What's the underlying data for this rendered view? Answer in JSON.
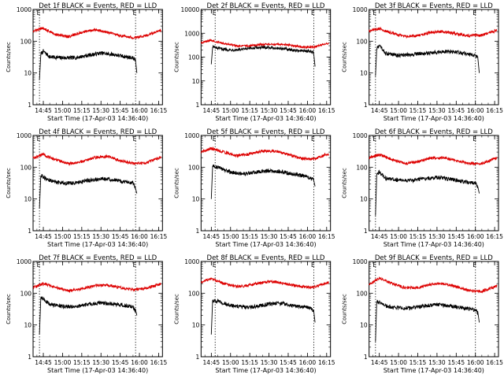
{
  "figure": {
    "ylabel": "Counts/sec",
    "xlabel": "Start Time (17-Apr-03 14:36:40)",
    "marker_label": "E",
    "colors": {
      "events": "#000000",
      "lld": "#dd0000",
      "axes": "#000000"
    }
  },
  "chart_data": [
    {
      "type": "line",
      "title": "Det 1f BLACK = Events, RED = LLD",
      "xlabel": "Start Time (17-Apr-03 14:36:40)",
      "ylabel": "Counts/sec",
      "yscale": "log",
      "ylim": [
        1,
        1000
      ],
      "yticks": [
        "1",
        "10",
        "100",
        "1000"
      ],
      "xlim": [
        "14:37",
        "16:18"
      ],
      "xticks": [
        "14:45",
        "15:00",
        "15:15",
        "15:30",
        "15:45",
        "16:00",
        "16:15"
      ],
      "markers": [
        "14:42",
        "15:57"
      ],
      "marker_label": "E",
      "series": [
        {
          "name": "BLACK = Events",
          "x": [
            "14:42",
            "14:43",
            "14:45",
            "14:50",
            "15:00",
            "15:10",
            "15:20",
            "15:30",
            "15:40",
            "15:50",
            "15:55",
            "15:57",
            "15:58"
          ],
          "y": [
            6,
            40,
            48,
            32,
            30,
            30,
            36,
            42,
            38,
            32,
            30,
            25,
            10
          ]
        },
        {
          "name": "RED = LLD",
          "x": [
            "14:37",
            "14:45",
            "14:55",
            "15:05",
            "15:15",
            "15:25",
            "15:35",
            "15:45",
            "15:55",
            "16:05",
            "16:17"
          ],
          "y": [
            205,
            260,
            160,
            140,
            190,
            230,
            190,
            150,
            130,
            150,
            220
          ]
        }
      ]
    },
    {
      "type": "line",
      "title": "Det 2f BLACK = Events, RED = LLD",
      "xlabel": "Start Time (17-Apr-03 14:36:40)",
      "ylabel": "Counts/sec",
      "yscale": "log",
      "ylim": [
        1,
        10000
      ],
      "yticks": [
        "1",
        "10",
        "100",
        "1000",
        "10000"
      ],
      "xlim": [
        "14:37",
        "16:18"
      ],
      "xticks": [
        "14:45",
        "15:00",
        "15:15",
        "15:30",
        "15:45",
        "16:00",
        "16:15"
      ],
      "markers": [
        "14:48",
        "16:05"
      ],
      "marker_label": "E",
      "series": [
        {
          "name": "BLACK = Events",
          "x": [
            "14:45",
            "14:46",
            "14:50",
            "15:00",
            "15:10",
            "15:20",
            "15:30",
            "15:40",
            "15:50",
            "16:00",
            "16:05",
            "16:06"
          ],
          "y": [
            50,
            280,
            230,
            200,
            210,
            250,
            255,
            230,
            190,
            180,
            160,
            40
          ]
        },
        {
          "name": "RED = LLD",
          "x": [
            "14:37",
            "14:45",
            "14:55",
            "15:05",
            "15:15",
            "15:25",
            "15:35",
            "15:45",
            "15:55",
            "16:05",
            "16:17"
          ],
          "y": [
            400,
            500,
            380,
            290,
            300,
            340,
            350,
            330,
            270,
            260,
            400
          ]
        }
      ]
    },
    {
      "type": "line",
      "title": "Det 3f BLACK = Events, RED = LLD",
      "xlabel": "Start Time (17-Apr-03 14:36:40)",
      "ylabel": "Counts/sec",
      "yscale": "log",
      "ylim": [
        1,
        1000
      ],
      "yticks": [
        "1",
        "10",
        "100",
        "1000"
      ],
      "xlim": [
        "14:37",
        "16:18"
      ],
      "xticks": [
        "14:45",
        "15:00",
        "15:15",
        "15:30",
        "15:45",
        "16:00",
        "16:15"
      ],
      "markers": [
        "14:42",
        "16:00"
      ],
      "marker_label": "E",
      "series": [
        {
          "name": "BLACK = Events",
          "x": [
            "14:42",
            "14:43",
            "14:45",
            "14:50",
            "15:00",
            "15:10",
            "15:20",
            "15:30",
            "15:40",
            "15:50",
            "16:00",
            "16:02",
            "16:03"
          ],
          "y": [
            8,
            60,
            70,
            42,
            35,
            38,
            42,
            45,
            48,
            42,
            35,
            30,
            10
          ]
        },
        {
          "name": "RED = LLD",
          "x": [
            "14:37",
            "14:45",
            "14:55",
            "15:05",
            "15:15",
            "15:25",
            "15:35",
            "15:45",
            "15:55",
            "16:05",
            "16:17"
          ],
          "y": [
            210,
            250,
            180,
            140,
            150,
            190,
            200,
            170,
            150,
            155,
            220
          ]
        }
      ]
    },
    {
      "type": "line",
      "title": "Det 4f BLACK = Events, RED = LLD",
      "xlabel": "Start Time (17-Apr-03 14:36:40)",
      "ylabel": "Counts/sec",
      "yscale": "log",
      "ylim": [
        1,
        1000
      ],
      "yticks": [
        "1",
        "10",
        "100",
        "1000"
      ],
      "xlim": [
        "14:37",
        "16:18"
      ],
      "xticks": [
        "14:45",
        "15:00",
        "15:15",
        "15:30",
        "15:45",
        "16:00",
        "16:15"
      ],
      "markers": [
        "14:42",
        "15:57"
      ],
      "marker_label": "E",
      "series": [
        {
          "name": "BLACK = Events",
          "x": [
            "14:42",
            "14:43",
            "14:45",
            "14:50",
            "15:00",
            "15:10",
            "15:20",
            "15:30",
            "15:40",
            "15:50",
            "15:55",
            "15:57",
            "15:58"
          ],
          "y": [
            5,
            55,
            50,
            38,
            32,
            32,
            38,
            44,
            40,
            34,
            32,
            22,
            15
          ]
        },
        {
          "name": "RED = LLD",
          "x": [
            "14:37",
            "14:45",
            "14:55",
            "15:05",
            "15:15",
            "15:25",
            "15:35",
            "15:45",
            "15:55",
            "16:05",
            "16:17"
          ],
          "y": [
            195,
            250,
            170,
            130,
            150,
            200,
            220,
            160,
            130,
            135,
            210
          ]
        }
      ]
    },
    {
      "type": "line",
      "title": "Det 5f BLACK = Events, RED = LLD",
      "xlabel": "Start Time (17-Apr-03 14:36:40)",
      "ylabel": "Counts/sec",
      "yscale": "log",
      "ylim": [
        1,
        1000
      ],
      "yticks": [
        "1",
        "10",
        "100",
        "1000"
      ],
      "xlim": [
        "14:37",
        "16:18"
      ],
      "xticks": [
        "14:45",
        "15:00",
        "15:15",
        "15:30",
        "15:45",
        "16:00",
        "16:15"
      ],
      "markers": [
        "14:48",
        "16:05"
      ],
      "marker_label": "E",
      "series": [
        {
          "name": "BLACK = Events",
          "x": [
            "14:45",
            "14:46",
            "14:50",
            "15:00",
            "15:10",
            "15:20",
            "15:30",
            "15:40",
            "15:50",
            "16:00",
            "16:05",
            "16:06"
          ],
          "y": [
            10,
            110,
            100,
            70,
            60,
            70,
            78,
            72,
            60,
            50,
            40,
            25
          ]
        },
        {
          "name": "RED = LLD",
          "x": [
            "14:37",
            "14:45",
            "14:55",
            "15:05",
            "15:15",
            "15:25",
            "15:35",
            "15:45",
            "15:55",
            "16:05",
            "16:17"
          ],
          "y": [
            300,
            390,
            300,
            230,
            260,
            330,
            320,
            250,
            190,
            180,
            270
          ]
        }
      ]
    },
    {
      "type": "line",
      "title": "Det 6f BLACK = Events, RED = LLD",
      "xlabel": "Start Time (17-Apr-03 14:36:40)",
      "ylabel": "Counts/sec",
      "yscale": "log",
      "ylim": [
        1,
        1000
      ],
      "yticks": [
        "1",
        "10",
        "100",
        "1000"
      ],
      "xlim": [
        "14:37",
        "16:18"
      ],
      "xticks": [
        "14:45",
        "15:00",
        "15:15",
        "15:30",
        "15:45",
        "16:00",
        "16:15"
      ],
      "markers": [
        "14:42",
        "16:00"
      ],
      "marker_label": "E",
      "series": [
        {
          "name": "BLACK = Events",
          "x": [
            "14:42",
            "14:43",
            "14:45",
            "14:50",
            "15:00",
            "15:10",
            "15:20",
            "15:30",
            "15:40",
            "15:50",
            "16:00",
            "16:02",
            "16:03"
          ],
          "y": [
            3,
            60,
            70,
            45,
            38,
            38,
            44,
            48,
            42,
            36,
            32,
            22,
            15
          ]
        },
        {
          "name": "RED = LLD",
          "x": [
            "14:37",
            "14:45",
            "14:55",
            "15:05",
            "15:15",
            "15:25",
            "15:35",
            "15:45",
            "15:55",
            "16:05",
            "16:17"
          ],
          "y": [
            200,
            250,
            175,
            130,
            150,
            195,
            200,
            165,
            130,
            130,
            200
          ]
        }
      ]
    },
    {
      "type": "line",
      "title": "Det 7f BLACK = Events, RED = LLD",
      "xlabel": "Start Time (17-Apr-03 14:36:40)",
      "ylabel": "Counts/sec",
      "yscale": "log",
      "ylim": [
        1,
        1000
      ],
      "yticks": [
        "1",
        "10",
        "100",
        "1000"
      ],
      "xlim": [
        "14:37",
        "16:18"
      ],
      "xticks": [
        "14:45",
        "15:00",
        "15:15",
        "15:30",
        "15:45",
        "16:00",
        "16:15"
      ],
      "markers": [
        "14:42",
        "15:57"
      ],
      "marker_label": "E",
      "series": [
        {
          "name": "BLACK = Events",
          "x": [
            "14:42",
            "14:43",
            "14:45",
            "14:50",
            "15:00",
            "15:10",
            "15:20",
            "15:30",
            "15:40",
            "15:50",
            "15:55",
            "15:57",
            "15:58"
          ],
          "y": [
            5,
            70,
            65,
            45,
            38,
            38,
            45,
            50,
            46,
            40,
            36,
            28,
            20
          ]
        },
        {
          "name": "RED = LLD",
          "x": [
            "14:37",
            "14:45",
            "14:55",
            "15:05",
            "15:15",
            "15:25",
            "15:35",
            "15:45",
            "15:55",
            "16:05",
            "16:17"
          ],
          "y": [
            150,
            200,
            150,
            120,
            135,
            175,
            180,
            150,
            130,
            140,
            200
          ]
        }
      ]
    },
    {
      "type": "line",
      "title": "Det 8f BLACK = Events, RED = LLD",
      "xlabel": "Start Time (17-Apr-03 14:36:40)",
      "ylabel": "Counts/sec",
      "yscale": "log",
      "ylim": [
        1,
        1000
      ],
      "yticks": [
        "1",
        "10",
        "100",
        "1000"
      ],
      "xlim": [
        "14:37",
        "16:18"
      ],
      "xticks": [
        "14:45",
        "15:00",
        "15:15",
        "15:30",
        "15:45",
        "16:00",
        "16:15"
      ],
      "markers": [
        "14:48",
        "16:05"
      ],
      "marker_label": "E",
      "series": [
        {
          "name": "BLACK = Events",
          "x": [
            "14:45",
            "14:46",
            "14:50",
            "15:00",
            "15:10",
            "15:20",
            "15:30",
            "15:40",
            "15:50",
            "16:00",
            "16:05",
            "16:06"
          ],
          "y": [
            5,
            60,
            55,
            42,
            36,
            38,
            46,
            48,
            40,
            36,
            30,
            12
          ]
        },
        {
          "name": "RED = LLD",
          "x": [
            "14:37",
            "14:45",
            "14:55",
            "15:05",
            "15:15",
            "15:25",
            "15:35",
            "15:45",
            "15:55",
            "16:05",
            "16:17"
          ],
          "y": [
            220,
            290,
            200,
            160,
            180,
            220,
            230,
            190,
            160,
            155,
            220
          ]
        }
      ]
    },
    {
      "type": "line",
      "title": "Det 9f BLACK = Events, RED = LLD",
      "xlabel": "Start Time (17-Apr-03 14:36:40)",
      "ylabel": "Counts/sec",
      "yscale": "log",
      "ylim": [
        1,
        1000
      ],
      "yticks": [
        "1",
        "10",
        "100",
        "1000"
      ],
      "xlim": [
        "14:37",
        "16:18"
      ],
      "xticks": [
        "14:45",
        "15:00",
        "15:15",
        "15:30",
        "15:45",
        "16:00",
        "16:15"
      ],
      "markers": [
        "14:42",
        "16:00"
      ],
      "marker_label": "E",
      "series": [
        {
          "name": "BLACK = Events",
          "x": [
            "14:42",
            "14:43",
            "14:45",
            "14:50",
            "15:00",
            "15:10",
            "15:20",
            "15:30",
            "15:40",
            "15:50",
            "16:00",
            "16:02",
            "16:03"
          ],
          "y": [
            3,
            55,
            52,
            40,
            34,
            34,
            40,
            44,
            40,
            34,
            30,
            24,
            12
          ]
        },
        {
          "name": "RED = LLD",
          "x": [
            "14:37",
            "14:45",
            "14:55",
            "15:05",
            "15:15",
            "15:25",
            "15:35",
            "15:45",
            "15:55",
            "16:05",
            "16:17"
          ],
          "y": [
            180,
            300,
            200,
            150,
            150,
            190,
            200,
            160,
            120,
            115,
            170
          ]
        }
      ]
    }
  ]
}
